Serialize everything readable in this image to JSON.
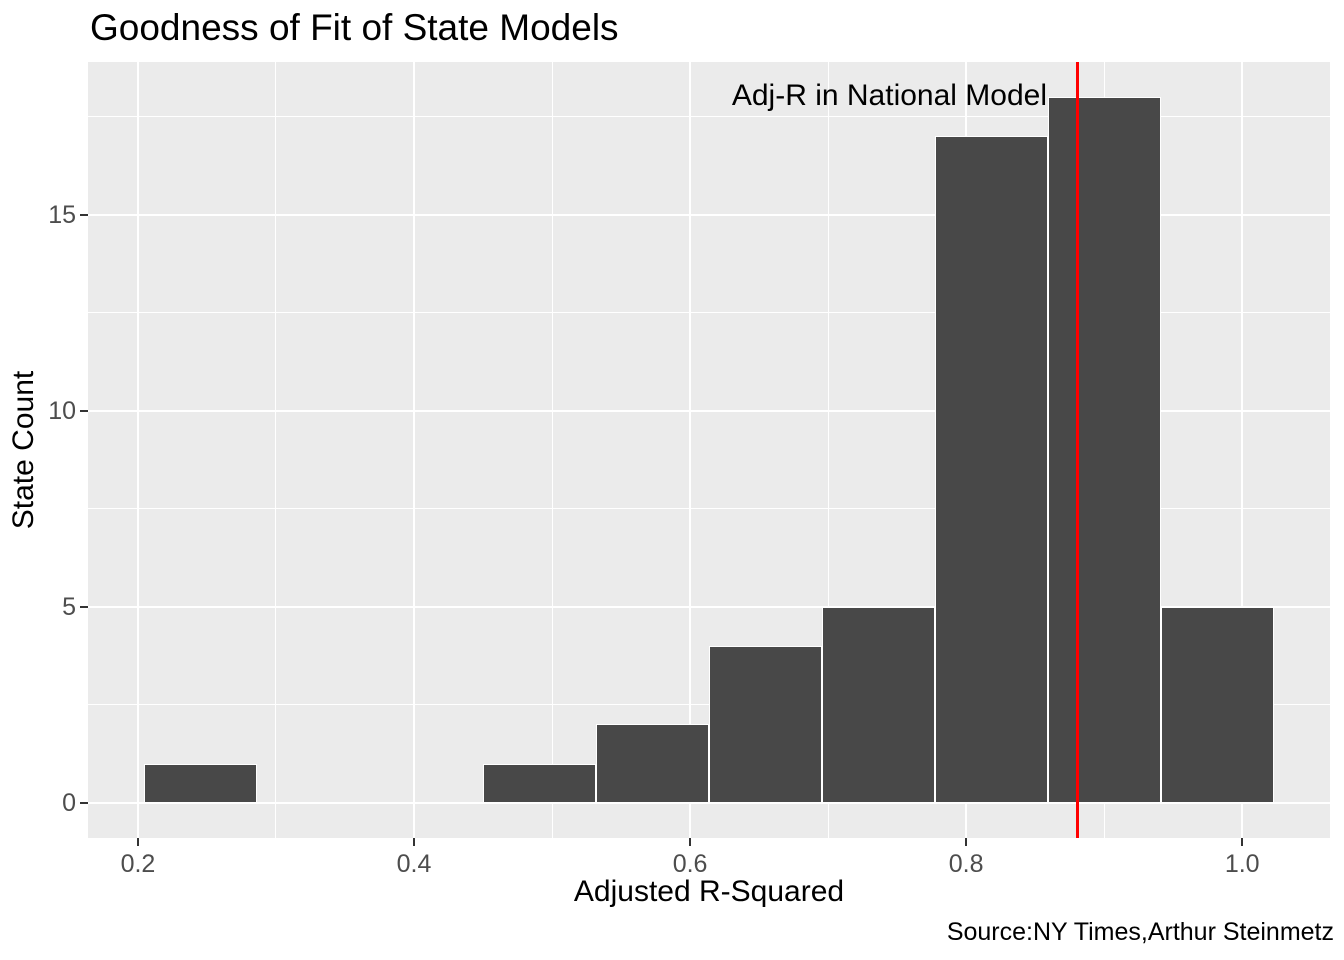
{
  "caption": "Source:NY Times,Arthur Steinmetz",
  "colors": {
    "panel_bg": "#EBEBEB",
    "grid": "#FFFFFF",
    "bar_fill": "#484848",
    "bar_border": "#FFFFFF",
    "ref_line": "#FF0000",
    "tick_mark": "#333333",
    "tick_label": "#4D4D4D",
    "text": "#000000"
  },
  "chart_data": {
    "type": "bar",
    "subtype": "histogram",
    "title": "Goodness of Fit of State Models",
    "xlabel": "Adjusted R-Squared",
    "ylabel": "State Count",
    "bin_edges": [
      0.2047,
      0.2865,
      0.3683,
      0.4501,
      0.5319,
      0.6137,
      0.6955,
      0.7773,
      0.8591,
      0.9409,
      1.0227
    ],
    "counts": [
      1,
      0,
      0,
      1,
      2,
      4,
      5,
      17,
      18,
      5
    ],
    "x_ticks": [
      0.2,
      0.4,
      0.6,
      0.8,
      1.0
    ],
    "x_tick_labels": [
      "0.2",
      "0.4",
      "0.6",
      "0.8",
      "1.0"
    ],
    "x_minor": [
      0.3,
      0.5,
      0.7,
      0.9
    ],
    "y_ticks": [
      0,
      5,
      10,
      15
    ],
    "y_tick_labels": [
      "0",
      "5",
      "10",
      "15"
    ],
    "y_minor": [
      2.5,
      7.5,
      12.5,
      17.5
    ],
    "xlim": [
      0.1638,
      1.0636
    ],
    "ylim": [
      -0.9,
      18.9
    ],
    "grid": true,
    "legend": false,
    "ref_line": {
      "x": 0.881
    },
    "annotation": {
      "text": "Adj-R in National Model",
      "x": 0.859,
      "y": 18.0
    }
  }
}
